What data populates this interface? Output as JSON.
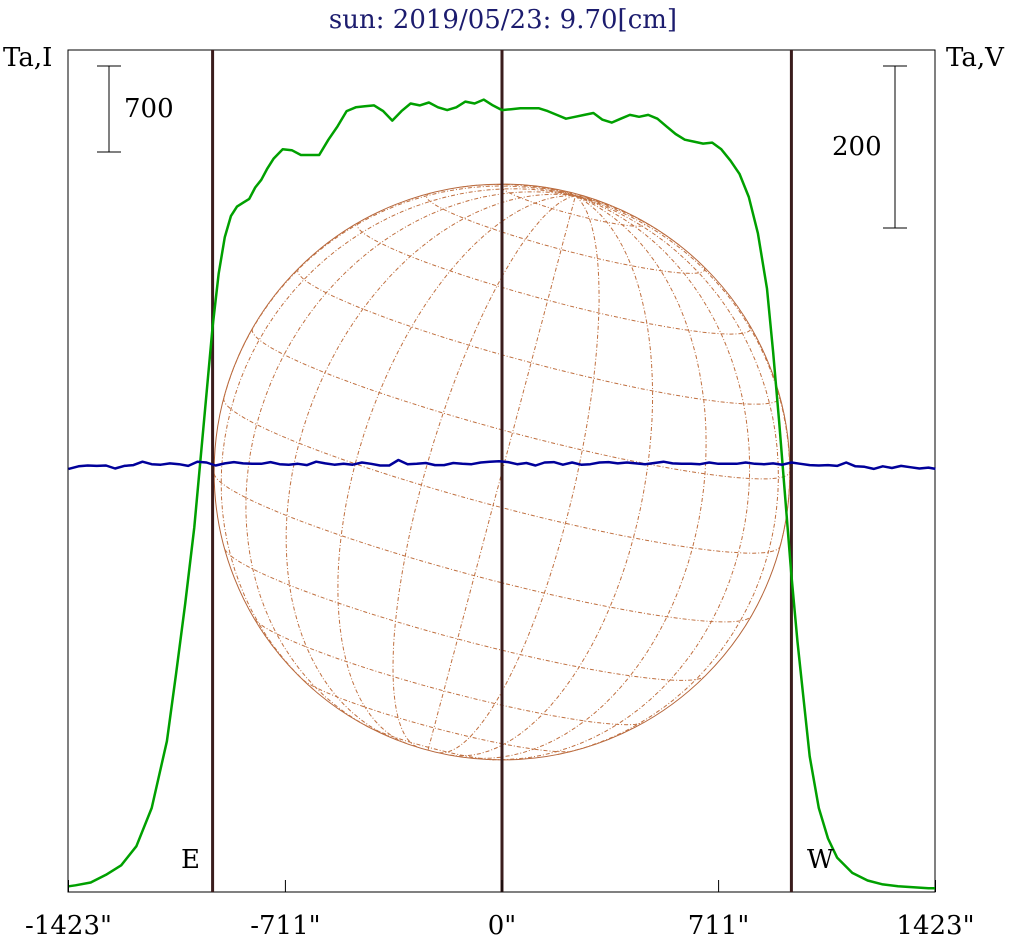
{
  "chart_data": {
    "type": "line",
    "title": "sun: 2019/05/23: 9.70[cm]",
    "ylabel_left": "Ta,I",
    "ylabel_right": "Ta,V",
    "scale_bar_left": "700",
    "scale_bar_right": "200",
    "xlim": [
      -1423,
      1423
    ],
    "x_ticks": [
      -1423,
      -711,
      0,
      711,
      1423
    ],
    "x_tick_labels": [
      "-1423\"",
      "-711\"",
      "0\"",
      "711\"",
      "1423\""
    ],
    "limb_markers": [
      -950,
      0,
      950
    ],
    "limb_labels": {
      "east": "E",
      "west": "W"
    },
    "solar_disk_radius": 945,
    "grid": false,
    "series": [
      {
        "key": "I",
        "color": "#00a000",
        "x": [
          -1423,
          -1400,
          -1350,
          -1300,
          -1250,
          -1200,
          -1150,
          -1100,
          -1070,
          -1040,
          -1010,
          -990,
          -970,
          -950,
          -930,
          -910,
          -890,
          -870,
          -850,
          -830,
          -810,
          -790,
          -770,
          -750,
          -720,
          -690,
          -660,
          -630,
          -600,
          -570,
          -540,
          -510,
          -480,
          -450,
          -420,
          -390,
          -360,
          -330,
          -300,
          -270,
          -240,
          -210,
          -180,
          -150,
          -120,
          -90,
          -60,
          -30,
          0,
          30,
          60,
          90,
          120,
          150,
          180,
          210,
          240,
          270,
          300,
          330,
          360,
          390,
          420,
          450,
          480,
          510,
          540,
          570,
          600,
          630,
          660,
          690,
          720,
          750,
          780,
          810,
          840,
          870,
          890,
          910,
          930,
          950,
          970,
          990,
          1010,
          1040,
          1070,
          1100,
          1150,
          1200,
          1250,
          1300,
          1350,
          1400,
          1423
        ],
        "values": [
          20,
          25,
          40,
          80,
          130,
          230,
          430,
          780,
          1130,
          1500,
          1900,
          2250,
          2600,
          2950,
          3230,
          3420,
          3530,
          3580,
          3600,
          3620,
          3680,
          3720,
          3780,
          3830,
          3880,
          3875,
          3850,
          3850,
          3850,
          3930,
          4000,
          4080,
          4100,
          4105,
          4110,
          4080,
          4030,
          4080,
          4120,
          4110,
          4125,
          4100,
          4085,
          4100,
          4130,
          4120,
          4140,
          4110,
          4085,
          4090,
          4095,
          4095,
          4095,
          4080,
          4060,
          4040,
          4050,
          4060,
          4070,
          4035,
          4020,
          4040,
          4060,
          4050,
          4060,
          4040,
          4000,
          3960,
          3930,
          3920,
          3910,
          3915,
          3880,
          3820,
          3750,
          3630,
          3440,
          3150,
          2820,
          2450,
          2050,
          1650,
          1300,
          1000,
          700,
          430,
          270,
          170,
          90,
          50,
          30,
          20,
          15,
          10,
          10
        ],
        "ylim": [
          -10,
          4400
        ]
      },
      {
        "key": "V",
        "color": "#00009a",
        "x": [
          -1423,
          -1390,
          -1360,
          -1330,
          -1300,
          -1270,
          -1240,
          -1210,
          -1180,
          -1150,
          -1120,
          -1090,
          -1060,
          -1030,
          -1000,
          -970,
          -940,
          -910,
          -880,
          -850,
          -820,
          -790,
          -760,
          -730,
          -700,
          -670,
          -640,
          -610,
          -580,
          -550,
          -520,
          -490,
          -460,
          -430,
          -400,
          -370,
          -340,
          -310,
          -280,
          -250,
          -220,
          -190,
          -160,
          -130,
          -100,
          -70,
          -40,
          -10,
          20,
          50,
          80,
          110,
          140,
          170,
          200,
          230,
          260,
          290,
          320,
          350,
          380,
          410,
          440,
          470,
          500,
          530,
          560,
          590,
          620,
          650,
          680,
          710,
          740,
          770,
          800,
          830,
          860,
          890,
          920,
          950,
          980,
          1010,
          1040,
          1070,
          1100,
          1130,
          1160,
          1190,
          1220,
          1250,
          1280,
          1310,
          1340,
          1370,
          1400,
          1423
        ],
        "values": [
          -5,
          1,
          3,
          2,
          3,
          -4,
          2,
          4,
          12,
          6,
          5,
          8,
          6,
          2,
          12,
          10,
          3,
          8,
          11,
          8,
          7,
          7,
          11,
          6,
          5,
          7,
          4,
          12,
          8,
          5,
          7,
          5,
          10,
          7,
          3,
          3,
          16,
          6,
          7,
          9,
          4,
          4,
          9,
          7,
          6,
          10,
          12,
          13,
          11,
          6,
          9,
          3,
          10,
          11,
          5,
          10,
          5,
          6,
          10,
          11,
          8,
          10,
          8,
          6,
          9,
          12,
          8,
          7,
          7,
          6,
          10,
          7,
          7,
          7,
          10,
          7,
          6,
          8,
          5,
          10,
          7,
          4,
          3,
          4,
          2,
          10,
          1,
          0,
          -5,
          1,
          -3,
          2,
          -1,
          -4,
          -2,
          -5
        ],
        "ylim": [
          -1005,
          985
        ]
      }
    ]
  }
}
